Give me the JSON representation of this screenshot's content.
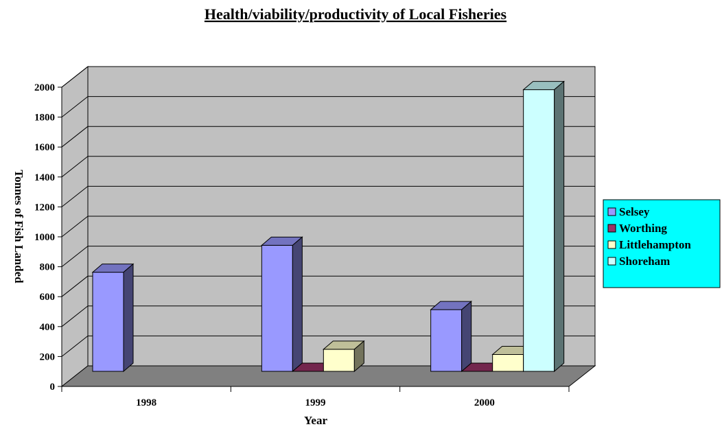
{
  "chart_data": {
    "type": "bar",
    "title": "Health/viability/productivity of Local Fisheries",
    "xlabel": "Year",
    "ylabel": "Tonnes of Fish Landed",
    "categories": [
      "1998",
      "1999",
      "2000"
    ],
    "ylim": [
      0,
      2000
    ],
    "yticks": [
      0,
      200,
      400,
      600,
      800,
      1000,
      1200,
      1400,
      1600,
      1800,
      2000
    ],
    "grid": true,
    "legend_position": "right",
    "series": [
      {
        "name": "Selsey",
        "values": [
          690,
          870,
          440
        ],
        "color": "#9999ff"
      },
      {
        "name": "Worthing",
        "values": [
          0,
          10,
          10
        ],
        "color": "#993366"
      },
      {
        "name": "Littlehampton",
        "values": [
          0,
          175,
          140
        ],
        "color": "#ffffcc"
      },
      {
        "name": "Shoreham",
        "values": [
          0,
          0,
          1910
        ],
        "color": "#ccffff"
      }
    ],
    "colors": {
      "back_wall": "#c0c0c0",
      "floor": "#808080",
      "legend_bg": "#00ffff"
    }
  }
}
